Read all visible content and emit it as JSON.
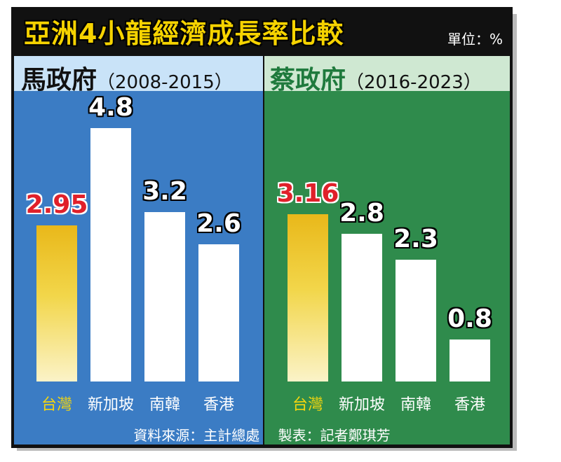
{
  "title": "亞洲4小龍經濟成長率比較",
  "unit_label": "單位：%",
  "footer": {
    "source": "資料來源：主計總處",
    "maker": "製表：記者鄭琪芳"
  },
  "colors": {
    "left_panel": "#3b7cc4",
    "right_panel": "#2f8b4c",
    "taiwan_highlight": "#e0202a",
    "taiwan_bar": "#f2d64a"
  },
  "chart_data": [
    {
      "type": "bar",
      "panel_title": "馬政府",
      "years": "（2008-2015）",
      "categories": [
        "台灣",
        "新加坡",
        "南韓",
        "香港"
      ],
      "values": [
        2.95,
        4.8,
        3.2,
        2.6
      ],
      "value_labels": [
        "2.95",
        "4.8",
        "3.2",
        "2.6"
      ],
      "ylim": [
        0,
        5.2
      ]
    },
    {
      "type": "bar",
      "panel_title": "蔡政府",
      "years": "（2016-2023）",
      "categories": [
        "台灣",
        "新加坡",
        "南韓",
        "香港"
      ],
      "values": [
        3.16,
        2.8,
        2.3,
        0.8
      ],
      "value_labels": [
        "3.16",
        "2.8",
        "2.3",
        "0.8"
      ],
      "ylim": [
        0,
        5.2
      ]
    }
  ]
}
